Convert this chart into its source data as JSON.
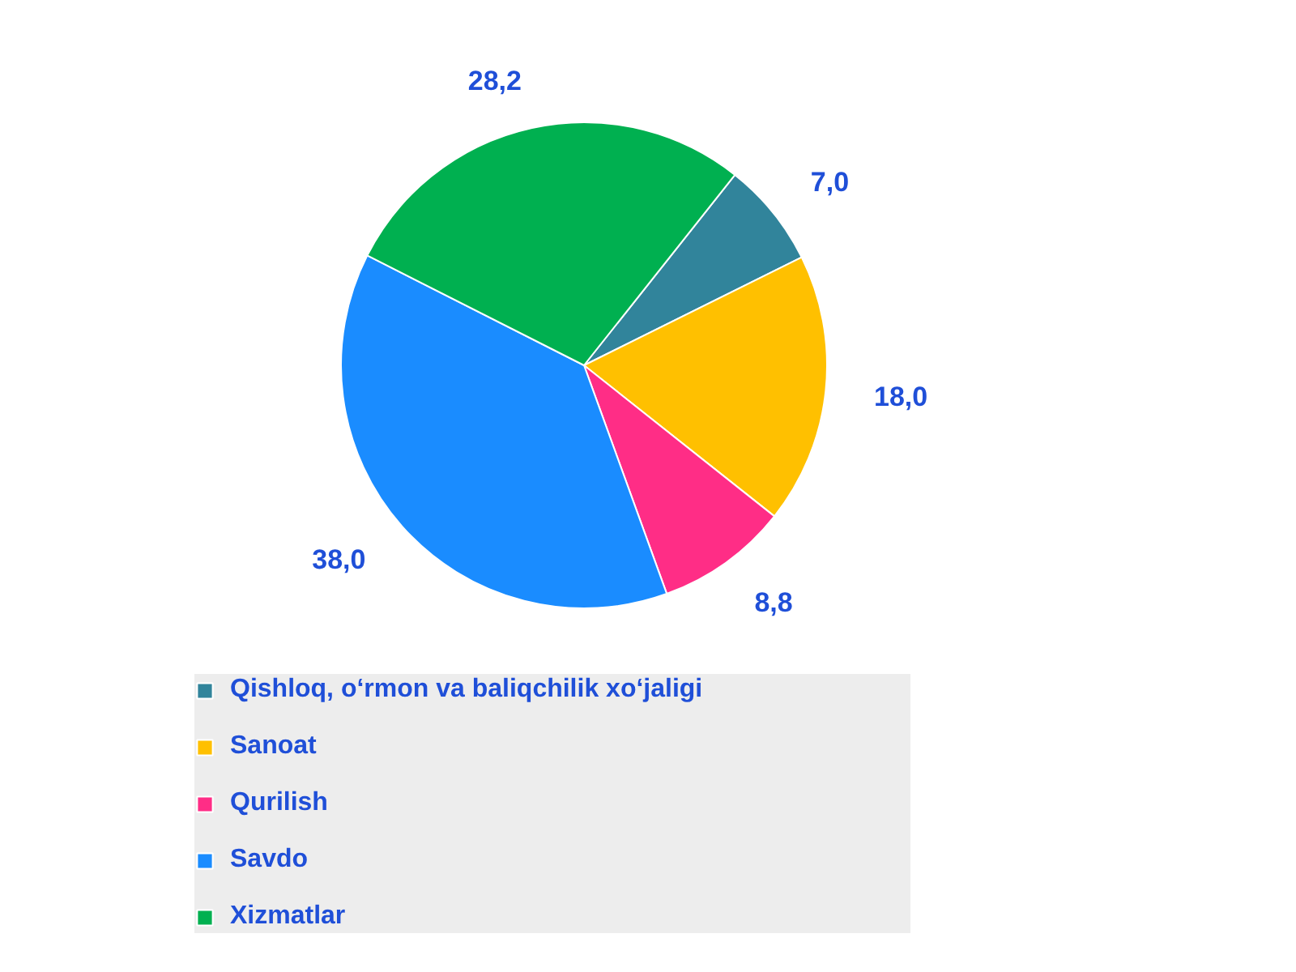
{
  "chart_data": {
    "type": "pie",
    "categories": [
      "Qishloq, o‘rmon va baliqchilik xo‘jaligi",
      "Sanoat",
      "Qurilish",
      "Savdo",
      "Xizmatlar"
    ],
    "values": [
      7.0,
      18.0,
      8.8,
      38.0,
      28.2
    ],
    "colors": [
      "#31849b",
      "#ffc000",
      "#ff2d86",
      "#1a8cff",
      "#00b050"
    ],
    "value_labels": [
      "7,0",
      "18,0",
      "8,8",
      "38,0",
      "28,2"
    ],
    "legend": "bottom"
  }
}
